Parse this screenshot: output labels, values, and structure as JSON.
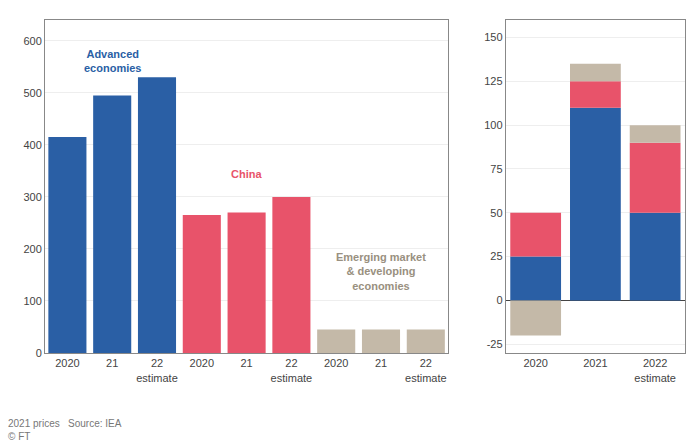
{
  "chart_data": [
    {
      "type": "bar",
      "categories": [
        "2020",
        "21",
        "22\nestimate",
        "2020",
        "21",
        "22\nestimate",
        "2020",
        "21",
        "22\nestimate"
      ],
      "values": [
        415,
        495,
        530,
        265,
        270,
        300,
        45,
        45,
        45
      ],
      "colors": [
        "#2a5fa5",
        "#2a5fa5",
        "#2a5fa5",
        "#e8536a",
        "#e8536a",
        "#e8536a",
        "#c4b9a8",
        "#c4b9a8",
        "#c4b9a8"
      ],
      "ylim": [
        0,
        640
      ],
      "yticks": [
        0,
        100,
        200,
        300,
        400,
        500,
        600
      ],
      "grid": true,
      "annotations": [
        {
          "text": "Advanced\neconomies",
          "x": 1,
          "y": 590,
          "color": "#2a5fa5"
        },
        {
          "text": "China",
          "x": 4,
          "y": 360,
          "color": "#e8536a"
        },
        {
          "text": "Emerging market\n& developing\neconomies",
          "x": 7,
          "y": 200,
          "color": "#999080"
        }
      ],
      "footnote": "2021 prices   Source: IEA\n© FT"
    },
    {
      "type": "bar",
      "stacked": true,
      "categories": [
        "2020",
        "2021",
        "2022\nestimate"
      ],
      "series": [
        {
          "color": "#2a5fa5",
          "values": [
            25,
            110,
            50
          ]
        },
        {
          "color": "#e8536a",
          "values": [
            25,
            15,
            40
          ]
        },
        {
          "color": "#c4b9a8",
          "values": [
            -20,
            10,
            10
          ]
        }
      ],
      "ylim": [
        -30,
        160
      ],
      "yticks": [
        -25,
        0,
        25,
        50,
        75,
        100,
        125,
        150
      ],
      "grid": true
    }
  ]
}
